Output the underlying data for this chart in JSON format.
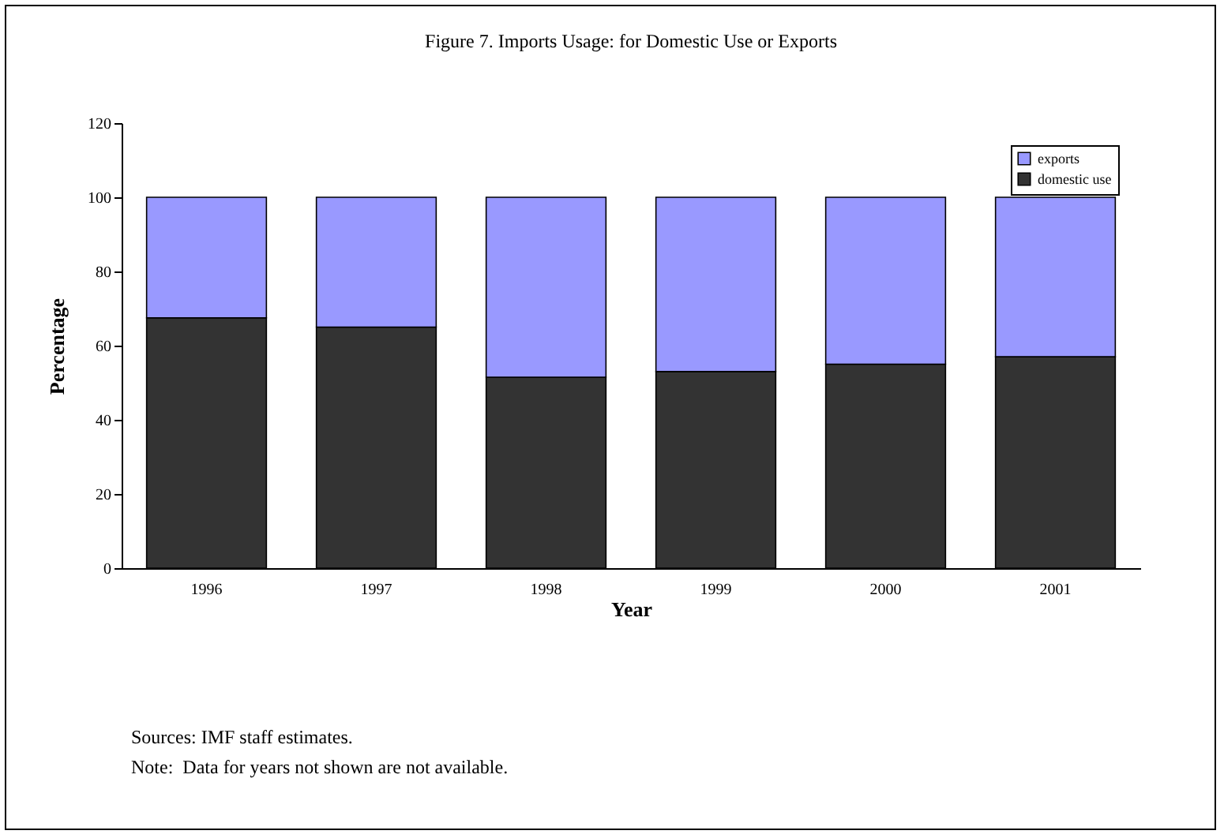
{
  "chart_data": {
    "type": "bar",
    "title": "Figure 7. Imports Usage: for Domestic Use or Exports",
    "xlabel": "Year",
    "ylabel": "Percentage",
    "categories": [
      "1996",
      "1997",
      "1998",
      "1999",
      "2000",
      "2001"
    ],
    "series": [
      {
        "name": "domestic use",
        "color": "#333333",
        "values": [
          67.5,
          65,
          51.5,
          53,
          55,
          57
        ]
      },
      {
        "name": "exports",
        "color": "#9999ff",
        "values": [
          32.5,
          35,
          48.5,
          47,
          45,
          43
        ]
      }
    ],
    "stacked": true,
    "ylim": [
      0,
      120
    ],
    "yticks": [
      0,
      20,
      40,
      60,
      80,
      100,
      120
    ],
    "grid": false,
    "legend": "top right",
    "annotations": [
      "Sources: IMF staff estimates.",
      "Note:  Data for years not shown are not available."
    ]
  }
}
